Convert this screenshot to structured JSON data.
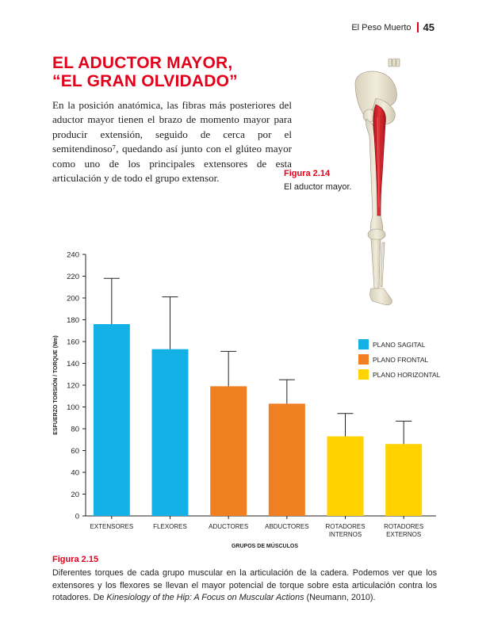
{
  "header": {
    "running_title": "El Peso Muerto",
    "page_number": "45"
  },
  "article": {
    "title_line1": "EL ADUCTOR MAYOR,",
    "title_line2": "“EL GRAN OLVIDADO”",
    "body": "En la posición anatómica, las fibras más posteriores del aductor mayor tienen el brazo de momento mayor para producir extensión, seguido de cerca por el semitendinoso⁷, quedando así junto con el glúteo mayor como uno de los principales extensores de esta articulación y de todo el grupo extensor."
  },
  "figure_2_14": {
    "label": "Figura 2.14",
    "caption": "El aductor mayor."
  },
  "figure_2_15": {
    "label": "Figura 2.15",
    "caption_pre": "Diferentes torques de cada grupo muscular en la articulación de la cadera. Podemos ver que los extensores y los flexores se llevan el mayor potencial de torque sobre esta articulación contra los rotadores. De ",
    "caption_italic": "Kinesiology of the Hip: A Focus on Muscular Actions",
    "caption_post": " (Neumann, 2010)."
  },
  "colors": {
    "accent": "#e2001a",
    "sagital": "#14b1e7",
    "frontal": "#f07f22",
    "horizontal": "#ffd200"
  },
  "chart_data": {
    "type": "bar",
    "xlabel": "GRUPOS DE MÚSCULOS",
    "ylabel": "ESFUERZO TORSIÓN / TORQUE (Nm)",
    "ylim": [
      0,
      240
    ],
    "yticks": [
      0,
      20,
      40,
      60,
      80,
      100,
      120,
      140,
      160,
      180,
      200,
      220,
      240
    ],
    "grid": false,
    "legend_position": "right",
    "legend": [
      {
        "name": "PLANO SAGITAL",
        "color": "#14b1e7"
      },
      {
        "name": "PLANO FRONTAL",
        "color": "#f07f22"
      },
      {
        "name": "PLANO HORIZONTAL",
        "color": "#ffd200"
      }
    ],
    "categories": [
      [
        "EXTENSORES"
      ],
      [
        "FLEXORES"
      ],
      [
        "ADUCTORES"
      ],
      [
        "ABDUCTORES"
      ],
      [
        "ROTADORES",
        "INTERNOS"
      ],
      [
        "ROTADORES",
        "EXTERNOS"
      ]
    ],
    "values": [
      176,
      153,
      119,
      103,
      73,
      66
    ],
    "error_upper": [
      218,
      201,
      151,
      125,
      94,
      87
    ],
    "plane": [
      "sagital",
      "sagital",
      "frontal",
      "frontal",
      "horizontal",
      "horizontal"
    ]
  }
}
